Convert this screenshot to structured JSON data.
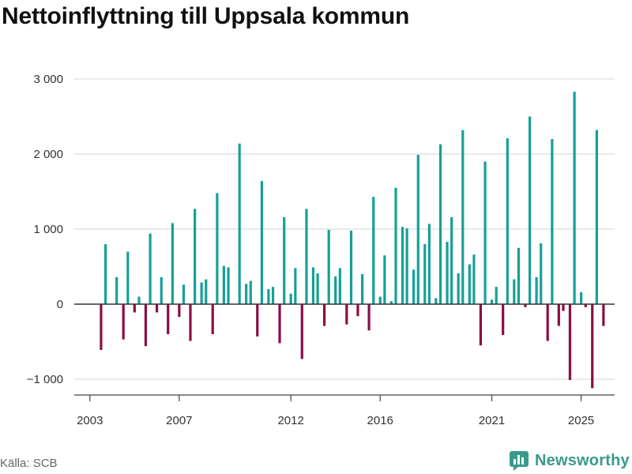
{
  "title": "Nettoinflyttning till Uppsala kommun",
  "source": "Källa: SCB",
  "brand": {
    "name": "Newsworthy",
    "icon": "newsworthy-logo-icon"
  },
  "colors": {
    "positive": "#16a097",
    "negative": "#8c0d45",
    "grid": "#dddddd",
    "zero": "#333333"
  },
  "chart_data": {
    "type": "bar",
    "title": "Nettoinflyttning till Uppsala kommun",
    "xlabel": "",
    "ylabel": "",
    "ylim": [
      -1200,
      3000
    ],
    "xlim": [
      2002.3,
      2026.5
    ],
    "grid": true,
    "y_ticks": [
      {
        "value": 3000,
        "label": "3 000"
      },
      {
        "value": 2000,
        "label": "2 000"
      },
      {
        "value": 1000,
        "label": "1 000"
      },
      {
        "value": 0,
        "label": "0"
      },
      {
        "value": -1000,
        "label": "−1 000"
      }
    ],
    "x_ticks": [
      {
        "value": 2003.0,
        "label": "2003"
      },
      {
        "value": 2007.0,
        "label": "2007"
      },
      {
        "value": 2012.0,
        "label": "2012"
      },
      {
        "value": 2016.0,
        "label": "2016"
      },
      {
        "value": 2021.0,
        "label": "2021"
      },
      {
        "value": 2025.0,
        "label": "2025"
      }
    ],
    "bars": [
      {
        "x": 2003.5,
        "value": -610
      },
      {
        "x": 2003.7,
        "value": 800
      },
      {
        "x": 2004.2,
        "value": 360
      },
      {
        "x": 2004.5,
        "value": -470
      },
      {
        "x": 2004.7,
        "value": 700
      },
      {
        "x": 2005.0,
        "value": -110
      },
      {
        "x": 2005.2,
        "value": 100
      },
      {
        "x": 2005.5,
        "value": -560
      },
      {
        "x": 2005.7,
        "value": 940
      },
      {
        "x": 2006.0,
        "value": -110
      },
      {
        "x": 2006.2,
        "value": 360
      },
      {
        "x": 2006.5,
        "value": -400
      },
      {
        "x": 2006.7,
        "value": 1080
      },
      {
        "x": 2007.0,
        "value": -170
      },
      {
        "x": 2007.2,
        "value": 260
      },
      {
        "x": 2007.5,
        "value": -490
      },
      {
        "x": 2007.7,
        "value": 1270
      },
      {
        "x": 2008.0,
        "value": 290
      },
      {
        "x": 2008.2,
        "value": 330
      },
      {
        "x": 2008.5,
        "value": -400
      },
      {
        "x": 2008.7,
        "value": 1480
      },
      {
        "x": 2009.0,
        "value": 510
      },
      {
        "x": 2009.2,
        "value": 490
      },
      {
        "x": 2009.7,
        "value": 2140
      },
      {
        "x": 2010.0,
        "value": 270
      },
      {
        "x": 2010.2,
        "value": 310
      },
      {
        "x": 2010.5,
        "value": -430
      },
      {
        "x": 2010.7,
        "value": 1640
      },
      {
        "x": 2011.0,
        "value": 200
      },
      {
        "x": 2011.2,
        "value": 230
      },
      {
        "x": 2011.5,
        "value": -520
      },
      {
        "x": 2011.7,
        "value": 1160
      },
      {
        "x": 2012.0,
        "value": 140
      },
      {
        "x": 2012.2,
        "value": 480
      },
      {
        "x": 2012.5,
        "value": -730
      },
      {
        "x": 2012.7,
        "value": 1270
      },
      {
        "x": 2013.0,
        "value": 490
      },
      {
        "x": 2013.2,
        "value": 410
      },
      {
        "x": 2013.5,
        "value": -290
      },
      {
        "x": 2013.7,
        "value": 990
      },
      {
        "x": 2014.0,
        "value": 370
      },
      {
        "x": 2014.2,
        "value": 480
      },
      {
        "x": 2014.5,
        "value": -270
      },
      {
        "x": 2014.7,
        "value": 980
      },
      {
        "x": 2015.0,
        "value": -160
      },
      {
        "x": 2015.2,
        "value": 400
      },
      {
        "x": 2015.5,
        "value": -350
      },
      {
        "x": 2015.7,
        "value": 1430
      },
      {
        "x": 2016.0,
        "value": 100
      },
      {
        "x": 2016.2,
        "value": 650
      },
      {
        "x": 2016.5,
        "value": 40
      },
      {
        "x": 2016.7,
        "value": 1550
      },
      {
        "x": 2017.0,
        "value": 1030
      },
      {
        "x": 2017.2,
        "value": 1010
      },
      {
        "x": 2017.5,
        "value": 460
      },
      {
        "x": 2017.7,
        "value": 1990
      },
      {
        "x": 2018.0,
        "value": 800
      },
      {
        "x": 2018.2,
        "value": 1070
      },
      {
        "x": 2018.5,
        "value": 80
      },
      {
        "x": 2018.7,
        "value": 2130
      },
      {
        "x": 2019.0,
        "value": 830
      },
      {
        "x": 2019.2,
        "value": 1160
      },
      {
        "x": 2019.5,
        "value": 410
      },
      {
        "x": 2019.7,
        "value": 2320
      },
      {
        "x": 2020.0,
        "value": 530
      },
      {
        "x": 2020.2,
        "value": 660
      },
      {
        "x": 2020.5,
        "value": -550
      },
      {
        "x": 2020.7,
        "value": 1900
      },
      {
        "x": 2021.0,
        "value": 60
      },
      {
        "x": 2021.2,
        "value": 230
      },
      {
        "x": 2021.5,
        "value": -410
      },
      {
        "x": 2021.7,
        "value": 2210
      },
      {
        "x": 2022.0,
        "value": 330
      },
      {
        "x": 2022.2,
        "value": 750
      },
      {
        "x": 2022.5,
        "value": -40
      },
      {
        "x": 2022.7,
        "value": 2500
      },
      {
        "x": 2023.0,
        "value": 360
      },
      {
        "x": 2023.2,
        "value": 810
      },
      {
        "x": 2023.5,
        "value": -490
      },
      {
        "x": 2023.7,
        "value": 2200
      },
      {
        "x": 2024.0,
        "value": -290
      },
      {
        "x": 2024.2,
        "value": -90
      },
      {
        "x": 2024.5,
        "value": -1010
      },
      {
        "x": 2024.7,
        "value": 2830
      },
      {
        "x": 2025.0,
        "value": 160
      },
      {
        "x": 2025.2,
        "value": -40
      },
      {
        "x": 2025.5,
        "value": -1120
      },
      {
        "x": 2025.7,
        "value": 2320
      },
      {
        "x": 2026.0,
        "value": -290
      }
    ]
  }
}
